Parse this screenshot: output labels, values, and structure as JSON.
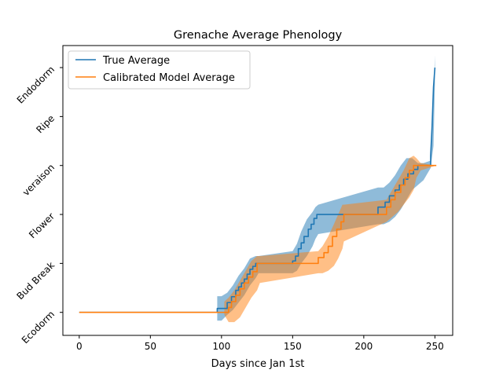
{
  "chart_data": {
    "type": "line",
    "title": "Grenache Average Phenology",
    "xlabel": "Days since Jan 1st",
    "ylabel": "",
    "xlim": [
      -11.5,
      262.5
    ],
    "ylim": [
      -0.47,
      5.45
    ],
    "xticks": [
      0,
      50,
      100,
      150,
      200,
      250
    ],
    "xtick_labels": [
      "0",
      "50",
      "100",
      "150",
      "200",
      "250"
    ],
    "yticks": [
      0,
      1,
      2,
      3,
      4,
      5
    ],
    "ytick_labels": [
      "Ecodorm",
      "Bud Break",
      "Flower",
      "veraison",
      "Ripe",
      "Endodorm"
    ],
    "legend_position": "upper-left",
    "grid": false,
    "series": [
      {
        "name": "True Average",
        "color": "#1f77b4",
        "band_color": "#1f77b4",
        "band_opacity": 0.5,
        "line": [
          [
            0,
            0
          ],
          [
            97,
            0
          ],
          [
            97,
            0.08
          ],
          [
            104,
            0.08
          ],
          [
            104,
            0.2
          ],
          [
            107,
            0.2
          ],
          [
            107,
            0.32
          ],
          [
            110,
            0.32
          ],
          [
            110,
            0.45
          ],
          [
            112,
            0.45
          ],
          [
            112,
            0.52
          ],
          [
            114,
            0.52
          ],
          [
            114,
            0.6
          ],
          [
            116,
            0.6
          ],
          [
            116,
            0.68
          ],
          [
            118,
            0.68
          ],
          [
            118,
            0.78
          ],
          [
            120,
            0.78
          ],
          [
            120,
            0.88
          ],
          [
            122,
            0.88
          ],
          [
            122,
            0.94
          ],
          [
            124,
            0.94
          ],
          [
            124,
            1
          ],
          [
            150,
            1
          ],
          [
            150,
            1.05
          ],
          [
            152,
            1.05
          ],
          [
            152,
            1.15
          ],
          [
            154,
            1.15
          ],
          [
            154,
            1.3
          ],
          [
            156,
            1.3
          ],
          [
            156,
            1.42
          ],
          [
            158,
            1.42
          ],
          [
            158,
            1.55
          ],
          [
            161,
            1.55
          ],
          [
            161,
            1.7
          ],
          [
            163,
            1.7
          ],
          [
            163,
            1.8
          ],
          [
            165,
            1.8
          ],
          [
            165,
            1.92
          ],
          [
            167,
            1.92
          ],
          [
            167,
            2
          ],
          [
            210,
            2
          ],
          [
            210,
            2.15
          ],
          [
            215,
            2.15
          ],
          [
            215,
            2.25
          ],
          [
            218,
            2.25
          ],
          [
            218,
            2.38
          ],
          [
            222,
            2.38
          ],
          [
            222,
            2.5
          ],
          [
            225,
            2.5
          ],
          [
            225,
            2.6
          ],
          [
            228,
            2.6
          ],
          [
            228,
            2.72
          ],
          [
            231,
            2.72
          ],
          [
            231,
            2.83
          ],
          [
            235,
            2.83
          ],
          [
            235,
            2.92
          ],
          [
            238,
            2.92
          ],
          [
            238,
            3
          ],
          [
            247,
            3
          ],
          [
            247,
            3.2
          ],
          [
            248,
            3.8
          ],
          [
            249,
            4.6
          ],
          [
            250,
            5
          ]
        ],
        "band": [
          [
            97,
            0.33,
            -0.17
          ],
          [
            100,
            0.33,
            -0.17
          ],
          [
            104,
            0.4,
            -0.05
          ],
          [
            108,
            0.55,
            0.05
          ],
          [
            112,
            0.75,
            0.2
          ],
          [
            116,
            0.9,
            0.35
          ],
          [
            120,
            1.1,
            0.55
          ],
          [
            124,
            1.15,
            0.7
          ],
          [
            126,
            1.15,
            0.8
          ],
          [
            150,
            1.25,
            0.8
          ],
          [
            153,
            1.4,
            0.85
          ],
          [
            156,
            1.65,
            1
          ],
          [
            160,
            1.9,
            1.15
          ],
          [
            164,
            2.05,
            1.35
          ],
          [
            166,
            2.15,
            1.5
          ],
          [
            168,
            2.2,
            1.6
          ],
          [
            210,
            2.55,
            1.8
          ],
          [
            214,
            2.55,
            1.8
          ],
          [
            218,
            2.65,
            1.85
          ],
          [
            222,
            2.8,
            1.95
          ],
          [
            226,
            3,
            2.1
          ],
          [
            230,
            3.15,
            2.3
          ],
          [
            234,
            3.15,
            2.5
          ],
          [
            238,
            3.05,
            2.6
          ],
          [
            242,
            3.05,
            2.7
          ],
          [
            247,
            3.1,
            2.95
          ],
          [
            249,
            4.4,
            3.4
          ],
          [
            250,
            5.25,
            4.7
          ]
        ]
      },
      {
        "name": "Calibrated Model Average",
        "color": "#ff7f0e",
        "band_color": "#ff7f0e",
        "band_opacity": 0.5,
        "line": [
          [
            0,
            0
          ],
          [
            105,
            0
          ],
          [
            105,
            0.1
          ],
          [
            107,
            0.1
          ],
          [
            107,
            0.22
          ],
          [
            110,
            0.22
          ],
          [
            110,
            0.35
          ],
          [
            113,
            0.35
          ],
          [
            113,
            0.48
          ],
          [
            116,
            0.48
          ],
          [
            116,
            0.6
          ],
          [
            119,
            0.6
          ],
          [
            119,
            0.72
          ],
          [
            122,
            0.72
          ],
          [
            122,
            0.83
          ],
          [
            125,
            0.83
          ],
          [
            125,
            1
          ],
          [
            168,
            1
          ],
          [
            168,
            1.12
          ],
          [
            172,
            1.12
          ],
          [
            172,
            1.22
          ],
          [
            175,
            1.22
          ],
          [
            175,
            1.35
          ],
          [
            178,
            1.35
          ],
          [
            178,
            1.55
          ],
          [
            181,
            1.55
          ],
          [
            181,
            1.7
          ],
          [
            184,
            1.7
          ],
          [
            184,
            1.85
          ],
          [
            186,
            1.85
          ],
          [
            186,
            2
          ],
          [
            216,
            2
          ],
          [
            216,
            2.15
          ],
          [
            219,
            2.15
          ],
          [
            219,
            2.3
          ],
          [
            222,
            2.3
          ],
          [
            222,
            2.45
          ],
          [
            226,
            2.45
          ],
          [
            226,
            2.6
          ],
          [
            229,
            2.6
          ],
          [
            229,
            2.75
          ],
          [
            232,
            2.75
          ],
          [
            232,
            2.9
          ],
          [
            235,
            2.9
          ],
          [
            235,
            3
          ],
          [
            251,
            3
          ]
        ],
        "band": [
          [
            102,
            0.22,
            -0.05
          ],
          [
            105,
            0.3,
            -0.2
          ],
          [
            109,
            0.45,
            -0.2
          ],
          [
            113,
            0.65,
            -0.1
          ],
          [
            117,
            0.85,
            0.1
          ],
          [
            121,
            1.05,
            0.3
          ],
          [
            125,
            1.15,
            0.45
          ],
          [
            127,
            1.15,
            0.6
          ],
          [
            168,
            1.25,
            0.8
          ],
          [
            171,
            1.35,
            0.8
          ],
          [
            175,
            1.55,
            0.85
          ],
          [
            179,
            1.8,
            0.95
          ],
          [
            182,
            2,
            1.1
          ],
          [
            185,
            2.2,
            1.3
          ],
          [
            186,
            2.2,
            1.45
          ],
          [
            216,
            2.3,
            1.85
          ],
          [
            220,
            2.5,
            1.95
          ],
          [
            224,
            2.7,
            2.05
          ],
          [
            228,
            2.9,
            2.2
          ],
          [
            232,
            3.15,
            2.35
          ],
          [
            235,
            3.2,
            2.5
          ],
          [
            237,
            3.15,
            2.75
          ],
          [
            240,
            3.05,
            2.9
          ],
          [
            251,
            3,
            3
          ]
        ]
      }
    ]
  }
}
